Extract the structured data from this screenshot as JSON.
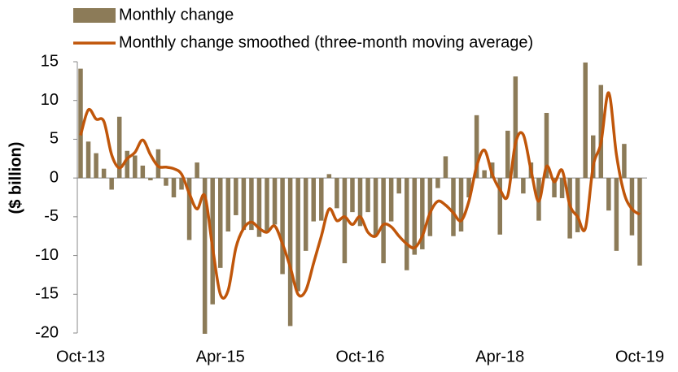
{
  "chart_data": {
    "type": "bar",
    "y_label": "($ billion)",
    "categories": [
      "Oct-13",
      null,
      null,
      null,
      null,
      null,
      null,
      null,
      null,
      null,
      null,
      null,
      null,
      null,
      null,
      null,
      null,
      null,
      "Apr-15",
      null,
      null,
      null,
      null,
      null,
      null,
      null,
      null,
      null,
      null,
      null,
      null,
      null,
      null,
      null,
      null,
      null,
      "Oct-16",
      null,
      null,
      null,
      null,
      null,
      null,
      null,
      null,
      null,
      null,
      null,
      null,
      null,
      null,
      null,
      null,
      null,
      "Apr-18",
      null,
      null,
      null,
      null,
      null,
      null,
      null,
      null,
      null,
      null,
      null,
      null,
      null,
      null,
      null,
      null,
      null,
      "Oct-19"
    ],
    "series": [
      {
        "name": "Monthly change",
        "type": "bar",
        "color": "#8c7b58",
        "values": [
          14.1,
          4.7,
          3.2,
          1.2,
          -1.5,
          7.9,
          3.5,
          2.9,
          1.6,
          -0.3,
          3.7,
          -1.0,
          -2.5,
          -1.5,
          -8.0,
          2.0,
          -20.1,
          -16.3,
          -11.6,
          -6.9,
          -4.8,
          -6.7,
          -6.7,
          -7.6,
          -7.0,
          -6.0,
          -12.4,
          -19.1,
          -14.6,
          -9.4,
          -5.6,
          -5.5,
          0.5,
          -3.9,
          -11.0,
          -4.4,
          -6.2,
          -4.4,
          -7.4,
          -11.0,
          -5.6,
          -2.0,
          -11.9,
          -9.9,
          -9.2,
          -7.5,
          -1.3,
          2.8,
          -7.5,
          -6.9,
          -2.5,
          8.1,
          1.0,
          2.0,
          -7.3,
          6.1,
          13.1,
          -2.0,
          2.0,
          -5.5,
          8.4,
          -2.5,
          -2.6,
          -7.8,
          -7.0,
          14.9,
          5.5,
          12.0,
          -4.2,
          -9.4,
          4.4,
          -7.4,
          -11.3
        ]
      },
      {
        "name": "Monthly change smoothed (three-month moving average)",
        "type": "line",
        "color": "#c0560a",
        "values": [
          5.5,
          8.8,
          7.6,
          7.3,
          3.0,
          1.3,
          2.5,
          3.3,
          4.9,
          3.0,
          1.5,
          1.4,
          1.2,
          0.5,
          -2,
          -4,
          -2.3,
          -9,
          -15,
          -14.5,
          -9,
          -6.5,
          -5.7,
          -6.5,
          -7,
          -6.2,
          -8.5,
          -11.5,
          -15,
          -14.5,
          -11,
          -7.5,
          -4,
          -5.5,
          -5,
          -6,
          -5,
          -7,
          -7.5,
          -6,
          -6.3,
          -7.5,
          -8.5,
          -9,
          -7.5,
          -4.5,
          -3,
          -3.5,
          -4.5,
          -5.5,
          -3,
          1.5,
          3.6,
          0.5,
          -1.5,
          -2.3,
          4.5,
          5.6,
          1,
          -3,
          1.5,
          -0.5,
          1,
          -3.5,
          -5,
          -6.5,
          1.5,
          4.5,
          11,
          3,
          -2,
          -4,
          -4.7
        ]
      }
    ],
    "ylim": [
      -20,
      15
    ],
    "yticks": [
      15,
      10,
      5,
      0,
      -5,
      -10,
      -15,
      -20
    ]
  }
}
